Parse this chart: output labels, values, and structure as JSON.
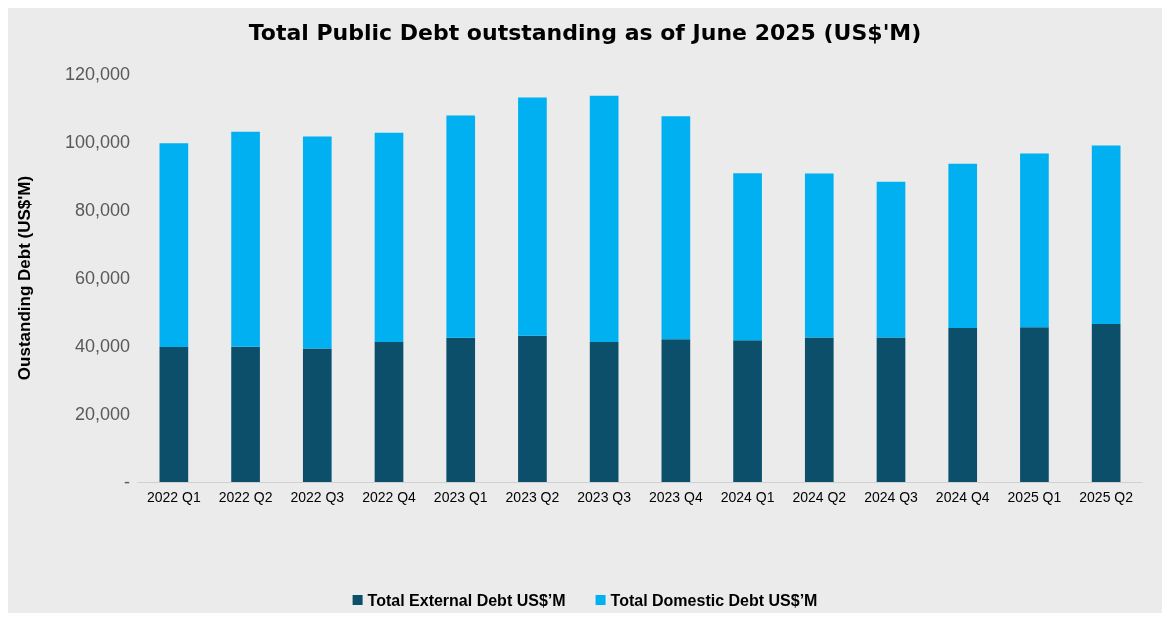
{
  "chart_data": {
    "type": "bar",
    "title": "Total Public Debt outstanding as of June 2025 (US$'M)",
    "ylabel": "Oustanding Debt (US$'M)",
    "categories": [
      "2022 Q1",
      "2022 Q2",
      "2022 Q3",
      "2022 Q4",
      "2023 Q1",
      "2023 Q2",
      "2023 Q3",
      "2023 Q4",
      "2024 Q1",
      "2024 Q2",
      "2024 Q3",
      "2024 Q4",
      "2025 Q1",
      "2025 Q2"
    ],
    "series": [
      {
        "name": "Total External Debt US$’M",
        "color": "#0b4f6a",
        "values": [
          39700,
          39800,
          39300,
          41200,
          42400,
          43000,
          41200,
          42000,
          41700,
          42500,
          42500,
          45300,
          45500,
          46500
        ]
      },
      {
        "name": "Total Domestic Debt US$’M",
        "color": "#00b0f0",
        "values": [
          59900,
          63200,
          62300,
          61500,
          65400,
          70100,
          72400,
          65600,
          49100,
          48200,
          45800,
          48300,
          51100,
          52500
        ]
      }
    ],
    "stacked": true,
    "ylim": [
      0,
      120000
    ],
    "yticks": [
      {
        "value": 0,
        "label": "-"
      },
      {
        "value": 20000,
        "label": "20,000"
      },
      {
        "value": 40000,
        "label": "40,000"
      },
      {
        "value": 60000,
        "label": "60,000"
      },
      {
        "value": 80000,
        "label": "80,000"
      },
      {
        "value": 100000,
        "label": "100,000"
      },
      {
        "value": 120000,
        "label": "120,000"
      }
    ],
    "grid": false,
    "legend": "bottom"
  }
}
